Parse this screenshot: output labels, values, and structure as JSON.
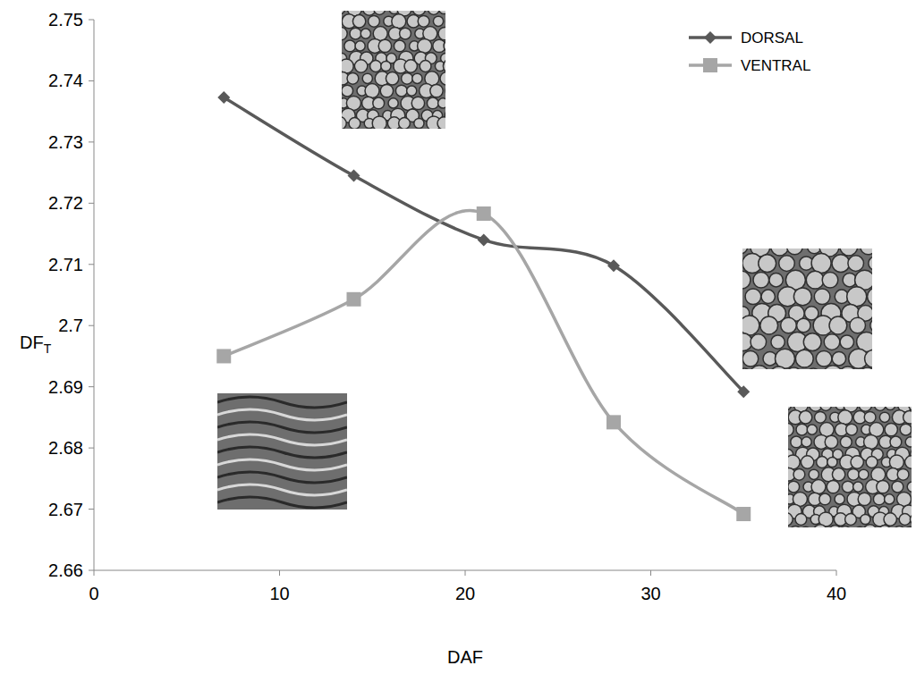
{
  "chart_data": {
    "type": "line",
    "x": [
      7,
      14,
      21,
      28,
      35
    ],
    "series": [
      {
        "name": "DORSAL",
        "color": "#595959",
        "marker": "diamond",
        "values": [
          2.7373,
          2.7245,
          2.714,
          2.7098,
          2.6892
        ]
      },
      {
        "name": "VENTRAL",
        "color": "#a6a6a6",
        "marker": "square",
        "values": [
          2.695,
          2.7043,
          2.7183,
          2.6842,
          2.6692
        ]
      }
    ],
    "xlabel": "DAF",
    "ylabel": "DFT",
    "xlim": [
      0,
      40
    ],
    "ylim": [
      2.66,
      2.75
    ],
    "xticks": [
      0,
      10,
      20,
      30,
      40
    ],
    "yticks": [
      2.66,
      2.67,
      2.68,
      2.69,
      2.7,
      2.71,
      2.72,
      2.73,
      2.74,
      2.75
    ],
    "grid": false,
    "legend": "upper right",
    "line_style": "smooth"
  }
}
